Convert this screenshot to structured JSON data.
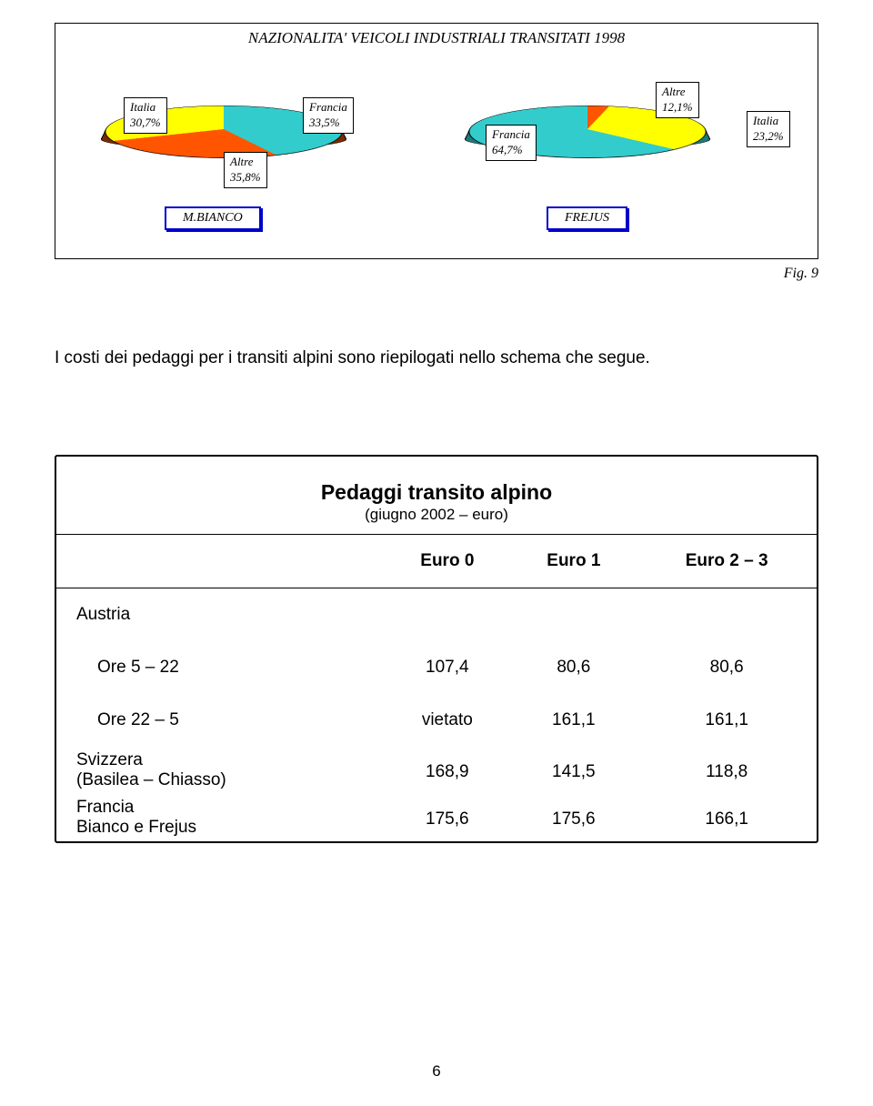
{
  "chart": {
    "title": "NAZIONALITA' VEICOLI INDUSTRIALI TRANSITATI 1998",
    "fig_label": "Fig. 9",
    "left_pie": {
      "button": "M.BIANCO",
      "slices": [
        {
          "name": "Italia",
          "value": 30.7,
          "label_line1": "Italia",
          "label_line2": "30,7%",
          "color": "#ffff00"
        },
        {
          "name": "Francia",
          "value": 33.5,
          "label_line1": "Francia",
          "label_line2": "33,5%",
          "color": "#33cccc"
        },
        {
          "name": "Altre",
          "value": 35.8,
          "label_line1": "Altre",
          "label_line2": "35,8%",
          "color": "#ff5500"
        }
      ]
    },
    "right_pie": {
      "button": "FREJUS",
      "slices": [
        {
          "name": "Altre",
          "value": 12.1,
          "label_line1": "Altre",
          "label_line2": "12,1%",
          "color": "#ff5500"
        },
        {
          "name": "Italia",
          "value": 23.2,
          "label_line1": "Italia",
          "label_line2": "23,2%",
          "color": "#ffff00"
        },
        {
          "name": "Francia",
          "value": 64.7,
          "label_line1": "Francia",
          "label_line2": "64,7%",
          "color": "#33cccc"
        }
      ]
    }
  },
  "body_text": "I costi dei pedaggi per i transiti alpini sono riepilogati nello schema che segue.",
  "table": {
    "title": "Pedaggi transito alpino",
    "subtitle": "(giugno 2002 – euro)",
    "columns": [
      "Euro 0",
      "Euro 1",
      "Euro 2 – 3"
    ],
    "rows": [
      {
        "label": "Austria",
        "sub": false,
        "cells": [
          "",
          "",
          ""
        ]
      },
      {
        "label": "Ore 5 – 22",
        "sub": true,
        "cells": [
          "107,4",
          "80,6",
          "80,6"
        ]
      },
      {
        "label": "Ore 22 – 5",
        "sub": true,
        "cells": [
          "vietato",
          "161,1",
          "161,1"
        ]
      },
      {
        "label": "Svizzera",
        "sub": false,
        "cells": [
          "",
          "",
          ""
        ],
        "pair": "top"
      },
      {
        "label": "(Basilea – Chiasso)",
        "sub": false,
        "cells": [
          "168,9",
          "141,5",
          "118,8"
        ],
        "pair": "bot"
      },
      {
        "label": "Francia",
        "sub": false,
        "cells": [
          "",
          "",
          ""
        ],
        "pair": "top"
      },
      {
        "label": "Bianco e Frejus",
        "sub": false,
        "cells": [
          "175,6",
          "175,6",
          "166,1"
        ],
        "pair": "bot"
      }
    ]
  },
  "page_number": "6"
}
